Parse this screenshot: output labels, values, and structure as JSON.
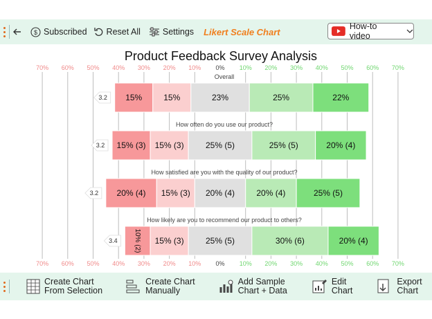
{
  "toolbar": {
    "subscribed": "Subscribed",
    "reset_all": "Reset All",
    "settings": "Settings",
    "chart_title": "Likert Scale Chart",
    "howto": "How-to video"
  },
  "bottom": {
    "create_selection_1": "Create Chart",
    "create_selection_2": "From Selection",
    "create_manual_1": "Create Chart",
    "create_manual_2": "Manually",
    "add_sample_1": "Add Sample",
    "add_sample_2": "Chart + Data",
    "edit_1": "Edit",
    "edit_2": "Chart",
    "export_1": "Export",
    "export_2": "Chart"
  },
  "colors": {
    "accent_orange": "#f07f1e",
    "bar_bg": "#e4f5ec",
    "strongly_negative": "#f7989a",
    "negative": "#fbcfcf",
    "neutral": "#e0e0e0",
    "positive": "#b9eab6",
    "strongly_positive": "#7ddf7c"
  },
  "chart_data": {
    "type": "bar",
    "title": "Product Feedback Survey Analysis",
    "axis_ticks": [
      "70%",
      "60%",
      "50%",
      "40%",
      "30%",
      "20%",
      "10%",
      "0%",
      "10%",
      "20%",
      "30%",
      "40%",
      "50%",
      "60%",
      "70%"
    ],
    "xlim": [
      -70,
      70
    ],
    "neutral_centered": true,
    "rows": [
      {
        "question": "Overall",
        "score": "3.2",
        "values": [
          15,
          15,
          23,
          25,
          22
        ],
        "labels": [
          "15%",
          "15%",
          "23%",
          "25%",
          "22%"
        ]
      },
      {
        "question": "How often do you use our product?",
        "score": "3.2",
        "values": [
          15,
          15,
          25,
          25,
          20
        ],
        "labels": [
          "15% (3)",
          "15% (3)",
          "25% (5)",
          "25% (5)",
          "20% (4)"
        ]
      },
      {
        "question": "How satisfied are you with the quality of our product?",
        "score": "3.2",
        "values": [
          20,
          15,
          20,
          20,
          25
        ],
        "labels": [
          "20% (4)",
          "15% (3)",
          "20% (4)",
          "20% (4)",
          "25% (5)"
        ]
      },
      {
        "question": "How likely are you to recommend our product to others?",
        "score": "3.4",
        "values": [
          10,
          15,
          25,
          30,
          20
        ],
        "labels": [
          "10% (2)",
          "15% (3)",
          "25% (5)",
          "30% (6)",
          "20% (4)"
        ],
        "rotated_label_index": 0
      }
    ]
  }
}
